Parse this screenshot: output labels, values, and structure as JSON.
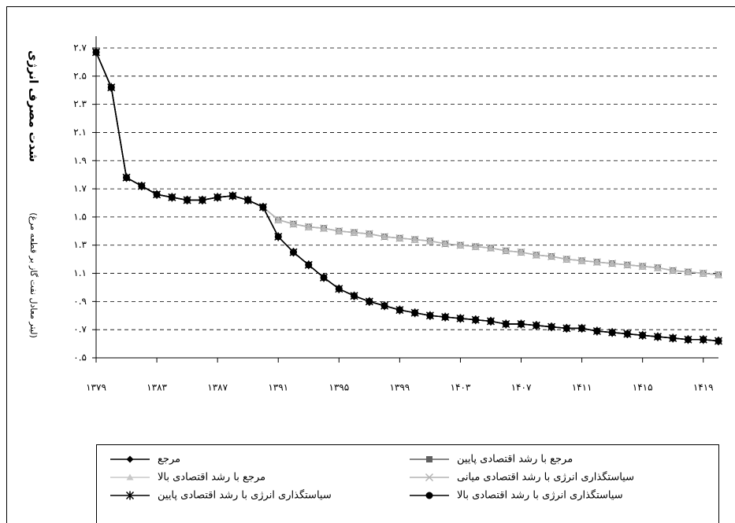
{
  "chart_data": {
    "type": "line",
    "y_label": "شدت مصرف انرژی",
    "y_label_unit": "(لیتر معادل نفت گاز بر قطعه مرغ)",
    "x": [
      1379,
      1380,
      1381,
      1382,
      1383,
      1384,
      1385,
      1386,
      1387,
      1388,
      1389,
      1390,
      1391,
      1392,
      1393,
      1394,
      1395,
      1396,
      1397,
      1398,
      1399,
      1400,
      1401,
      1402,
      1403,
      1404,
      1405,
      1406,
      1407,
      1408,
      1409,
      1410,
      1411,
      1412,
      1413,
      1414,
      1415,
      1416,
      1417,
      1418,
      1419,
      1420
    ],
    "xlim": [
      1379,
      1420
    ],
    "xticks": [
      {
        "value": 1379,
        "label": "۱۳۷۹"
      },
      {
        "value": 1383,
        "label": "۱۳۸۳"
      },
      {
        "value": 1387,
        "label": "۱۳۸۷"
      },
      {
        "value": 1391,
        "label": "۱۳۹۱"
      },
      {
        "value": 1395,
        "label": "۱۳۹۵"
      },
      {
        "value": 1399,
        "label": "۱۳۹۹"
      },
      {
        "value": 1403,
        "label": "۱۴۰۳"
      },
      {
        "value": 1407,
        "label": "۱۴۰۷"
      },
      {
        "value": 1411,
        "label": "۱۴۱۱"
      },
      {
        "value": 1415,
        "label": "۱۴۱۵"
      },
      {
        "value": 1419,
        "label": "۱۴۱۹"
      }
    ],
    "ylim": [
      0.5,
      2.7
    ],
    "yticks": [
      {
        "value": 0.5,
        "label": "۰.۵"
      },
      {
        "value": 0.7,
        "label": "۰.۷"
      },
      {
        "value": 0.9,
        "label": "۰.۹"
      },
      {
        "value": 1.1,
        "label": "۱.۱"
      },
      {
        "value": 1.3,
        "label": "۱.۳"
      },
      {
        "value": 1.5,
        "label": "۱.۵"
      },
      {
        "value": 1.7,
        "label": "۱.۷"
      },
      {
        "value": 1.9,
        "label": "۱.۹"
      },
      {
        "value": 2.1,
        "label": "۲.۱"
      },
      {
        "value": 2.3,
        "label": "۲.۳"
      },
      {
        "value": 2.5,
        "label": "۲.۵"
      },
      {
        "value": 2.7,
        "label": "۲.۷"
      }
    ],
    "grid": true,
    "legend": "bottom",
    "series": [
      {
        "name": "مرجع",
        "color": "#000000",
        "marker": "diamond",
        "values": [
          2.67,
          2.42,
          1.78,
          1.72,
          1.66,
          1.64,
          1.62,
          1.62,
          1.64,
          1.65,
          1.62,
          1.57,
          1.36,
          1.25,
          1.16,
          1.07,
          0.99,
          0.94,
          0.9,
          0.87,
          0.84,
          0.82,
          0.8,
          0.79,
          0.78,
          0.77,
          0.76,
          0.74,
          0.74,
          0.73,
          0.72,
          0.71,
          0.71,
          0.69,
          0.68,
          0.67,
          0.66,
          0.65,
          0.64,
          0.63,
          0.63,
          0.62
        ]
      },
      {
        "name": "مرجع با رشد اقتصادی پایین",
        "color": "#606060",
        "marker": "square",
        "values": [
          2.67,
          2.42,
          1.78,
          1.72,
          1.66,
          1.64,
          1.62,
          1.62,
          1.64,
          1.65,
          1.62,
          1.57,
          1.48,
          1.45,
          1.43,
          1.42,
          1.4,
          1.39,
          1.38,
          1.36,
          1.35,
          1.34,
          1.33,
          1.31,
          1.3,
          1.29,
          1.28,
          1.26,
          1.25,
          1.23,
          1.22,
          1.2,
          1.19,
          1.18,
          1.17,
          1.16,
          1.15,
          1.14,
          1.12,
          1.11,
          1.1,
          1.09
        ]
      },
      {
        "name": "مرجع با رشد اقتصادی بالا",
        "color": "#c8c8c8",
        "marker": "triangle",
        "values": [
          2.67,
          2.42,
          1.78,
          1.72,
          1.66,
          1.64,
          1.62,
          1.62,
          1.64,
          1.65,
          1.62,
          1.57,
          1.48,
          1.45,
          1.43,
          1.42,
          1.4,
          1.39,
          1.38,
          1.36,
          1.35,
          1.34,
          1.33,
          1.31,
          1.3,
          1.29,
          1.28,
          1.26,
          1.25,
          1.23,
          1.22,
          1.2,
          1.19,
          1.18,
          1.17,
          1.16,
          1.15,
          1.14,
          1.12,
          1.11,
          1.1,
          1.09
        ]
      },
      {
        "name": "سیاستگذاری انرژی با رشد اقتصادی میانی",
        "color": "#b4b4b4",
        "marker": "x",
        "values": [
          2.67,
          2.42,
          1.78,
          1.72,
          1.66,
          1.64,
          1.62,
          1.62,
          1.64,
          1.65,
          1.62,
          1.57,
          1.48,
          1.45,
          1.43,
          1.42,
          1.4,
          1.39,
          1.38,
          1.36,
          1.35,
          1.34,
          1.33,
          1.31,
          1.3,
          1.29,
          1.28,
          1.26,
          1.25,
          1.23,
          1.22,
          1.2,
          1.19,
          1.18,
          1.17,
          1.16,
          1.15,
          1.14,
          1.12,
          1.11,
          1.1,
          1.09
        ]
      },
      {
        "name": "سیاستگذاری انرژی با رشد اقتصادی پایین",
        "color": "#000000",
        "marker": "star",
        "values": [
          2.67,
          2.42,
          1.78,
          1.72,
          1.66,
          1.64,
          1.62,
          1.62,
          1.64,
          1.65,
          1.62,
          1.57,
          1.36,
          1.25,
          1.16,
          1.07,
          0.99,
          0.94,
          0.9,
          0.87,
          0.84,
          0.82,
          0.8,
          0.79,
          0.78,
          0.77,
          0.76,
          0.74,
          0.74,
          0.73,
          0.72,
          0.71,
          0.71,
          0.69,
          0.68,
          0.67,
          0.66,
          0.65,
          0.64,
          0.63,
          0.63,
          0.62
        ]
      },
      {
        "name": "سیاستگذاری انرژی با رشد اقتصادی بالا",
        "color": "#000000",
        "marker": "circle",
        "values": [
          2.67,
          2.42,
          1.78,
          1.72,
          1.66,
          1.64,
          1.62,
          1.62,
          1.64,
          1.65,
          1.62,
          1.57,
          1.36,
          1.25,
          1.16,
          1.07,
          0.99,
          0.94,
          0.9,
          0.87,
          0.84,
          0.82,
          0.8,
          0.79,
          0.78,
          0.77,
          0.76,
          0.74,
          0.74,
          0.73,
          0.72,
          0.71,
          0.71,
          0.69,
          0.68,
          0.67,
          0.66,
          0.65,
          0.64,
          0.63,
          0.63,
          0.62
        ]
      }
    ]
  }
}
